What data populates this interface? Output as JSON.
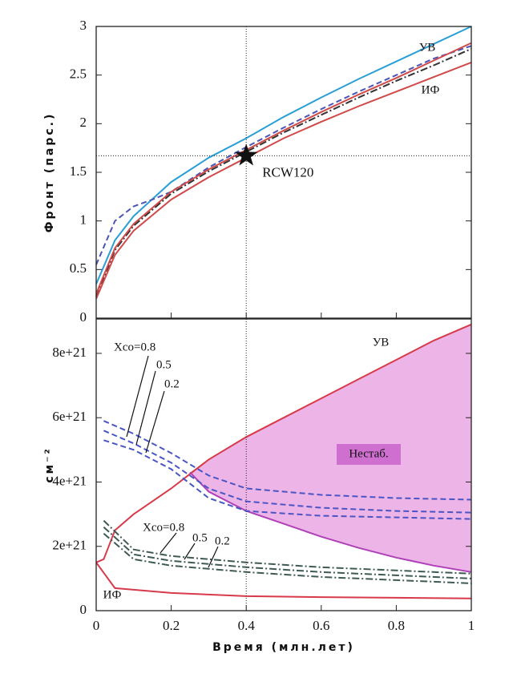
{
  "chart_data": [
    {
      "type": "line",
      "ylabel": "Фронт (парс.)",
      "xlim": [
        0,
        1
      ],
      "ylim": [
        0,
        3
      ],
      "yticks": [
        0,
        0.5,
        1,
        1.5,
        2,
        2.5,
        3
      ],
      "hline": 1.67,
      "vline": 0.4,
      "marker": {
        "x": 0.4,
        "y": 1.67,
        "label": "RCW120"
      },
      "annotations": [
        "УВ",
        "ИФ"
      ],
      "series": [
        {
          "color": "#2a9fd6",
          "dash": "solid",
          "x": [
            0,
            0.05,
            0.1,
            0.2,
            0.3,
            0.4,
            0.5,
            0.6,
            0.7,
            0.8,
            0.9,
            1
          ],
          "values": [
            0.35,
            0.8,
            1.05,
            1.4,
            1.65,
            1.85,
            2.07,
            2.27,
            2.46,
            2.64,
            2.82,
            3.0
          ]
        },
        {
          "color": "#4a55b5",
          "dash": "dashed",
          "x": [
            0,
            0.05,
            0.1,
            0.15,
            0.2,
            0.3,
            0.4,
            0.5,
            0.6,
            0.7,
            0.8,
            0.9,
            1
          ],
          "values": [
            0.55,
            1.0,
            1.15,
            1.22,
            1.3,
            1.55,
            1.76,
            1.96,
            2.15,
            2.33,
            2.5,
            2.67,
            2.8
          ]
        },
        {
          "color": "#333333",
          "dash": "dashdot",
          "x": [
            0,
            0.05,
            0.1,
            0.2,
            0.3,
            0.4,
            0.5,
            0.6,
            0.7,
            0.8,
            0.9,
            1
          ],
          "values": [
            0.22,
            0.7,
            0.95,
            1.28,
            1.51,
            1.71,
            1.91,
            2.09,
            2.27,
            2.44,
            2.6,
            2.77
          ]
        },
        {
          "color": "#d04a4a",
          "dash": "solid",
          "x": [
            0,
            0.05,
            0.1,
            0.2,
            0.3,
            0.4,
            0.5,
            0.6,
            0.7,
            0.8,
            0.9,
            1
          ],
          "values": [
            0.25,
            0.72,
            0.97,
            1.3,
            1.53,
            1.73,
            1.93,
            2.12,
            2.3,
            2.47,
            2.65,
            2.83
          ]
        },
        {
          "color": "#d04a4a",
          "dash": "solid",
          "x": [
            0,
            0.05,
            0.1,
            0.2,
            0.3,
            0.4,
            0.5,
            0.6,
            0.7,
            0.8,
            0.9,
            1
          ],
          "values": [
            0.2,
            0.65,
            0.9,
            1.22,
            1.45,
            1.65,
            1.85,
            2.02,
            2.18,
            2.33,
            2.48,
            2.63
          ]
        }
      ]
    },
    {
      "type": "line",
      "ylabel": "см⁻²",
      "xlabel": "Время (млн.лет)",
      "xlim": [
        0,
        1
      ],
      "ylim": [
        0,
        9.07e+21
      ],
      "xticks": [
        0,
        0.2,
        0.4,
        0.6,
        0.8,
        1
      ],
      "yticks": [
        0,
        {
          "value": 2e+21,
          "label": "2e+21"
        },
        {
          "value": 4e+21,
          "label": "4e+21"
        },
        {
          "value": 6e+21,
          "label": "6e+21"
        },
        {
          "value": 8e+21,
          "label": "8e+21"
        }
      ],
      "vline": 0.4,
      "annotations": [
        "УВ",
        "ИФ",
        "Нестаб.",
        "Xco=0.8",
        "0.5",
        "0.2",
        "Xco=0.8",
        "0.5",
        "0.2"
      ],
      "series": [
        {
          "color": "#d83a4a",
          "dash": "solid",
          "x": [
            0,
            0.02,
            0.05,
            0.1,
            0.2,
            0.3,
            0.4,
            0.5,
            0.6,
            0.7,
            0.8,
            0.9,
            1
          ],
          "values": [
            1.5e+21,
            1.6e+21,
            2.5e+21,
            3e+21,
            3.8e+21,
            4.7e+21,
            5.4e+21,
            6e+21,
            6.6e+21,
            7.2e+21,
            7.8e+21,
            8.4e+21,
            8.9e+21
          ]
        },
        {
          "color": "#b040b8",
          "dash": "solid",
          "x": [
            0.25,
            0.3,
            0.4,
            0.5,
            0.6,
            0.7,
            0.8,
            0.9,
            1
          ],
          "values": [
            4.3e+21,
            3.7e+21,
            3.1e+21,
            2.7e+21,
            2.3e+21,
            1.95e+21,
            1.65e+21,
            1.4e+21,
            1.2e+21
          ]
        },
        {
          "color": "#d83a4a",
          "dash": "solid",
          "x": [
            0,
            0.05,
            0.1,
            0.2,
            0.4,
            0.6,
            0.8,
            1
          ],
          "values": [
            1.5e+21,
            7e+20,
            6.5e+20,
            5.5e+20,
            4.5e+20,
            4.2e+20,
            4e+20,
            3.8e+20
          ]
        },
        {
          "color": "#4a55c5",
          "dash": "dashed",
          "x": [
            0.02,
            0.1,
            0.2,
            0.3,
            0.4,
            0.6,
            0.8,
            1
          ],
          "values": [
            5.9e+21,
            5.5e+21,
            4.9e+21,
            4.2e+21,
            3.8e+21,
            3.6e+21,
            3.5e+21,
            3.45e+21
          ]
        },
        {
          "color": "#4a55c5",
          "dash": "dashed",
          "x": [
            0.02,
            0.1,
            0.2,
            0.3,
            0.4,
            0.6,
            0.8,
            1
          ],
          "values": [
            5.6e+21,
            5.2e+21,
            4.6e+21,
            3.8e+21,
            3.4e+21,
            3.2e+21,
            3.1e+21,
            3.05e+21
          ]
        },
        {
          "color": "#4a55c5",
          "dash": "dashed",
          "x": [
            0.02,
            0.1,
            0.2,
            0.3,
            0.4,
            0.6,
            0.8,
            1
          ],
          "values": [
            5.3e+21,
            5e+21,
            4.4e+21,
            3.5e+21,
            3.1e+21,
            2.95e+21,
            2.9e+21,
            2.85e+21
          ]
        },
        {
          "color": "#3f5a55",
          "dash": "dashdot",
          "x": [
            0.02,
            0.1,
            0.2,
            0.4,
            0.6,
            0.8,
            1
          ],
          "values": [
            2.8e+21,
            1.9e+21,
            1.7e+21,
            1.5e+21,
            1.35e+21,
            1.25e+21,
            1.15e+21
          ]
        },
        {
          "color": "#3f5a55",
          "dash": "dashdot",
          "x": [
            0.02,
            0.1,
            0.2,
            0.4,
            0.6,
            0.8,
            1
          ],
          "values": [
            2.6e+21,
            1.75e+21,
            1.55e+21,
            1.35e+21,
            1.2e+21,
            1.1e+21,
            1e+21
          ]
        },
        {
          "color": "#3f5a55",
          "dash": "dashdot",
          "x": [
            0.02,
            0.1,
            0.2,
            0.4,
            0.6,
            0.8,
            1
          ],
          "values": [
            2.4e+21,
            1.6e+21,
            1.4e+21,
            1.2e+21,
            1.05e+21,
            9.5e+20,
            8.5e+20
          ]
        }
      ]
    }
  ]
}
